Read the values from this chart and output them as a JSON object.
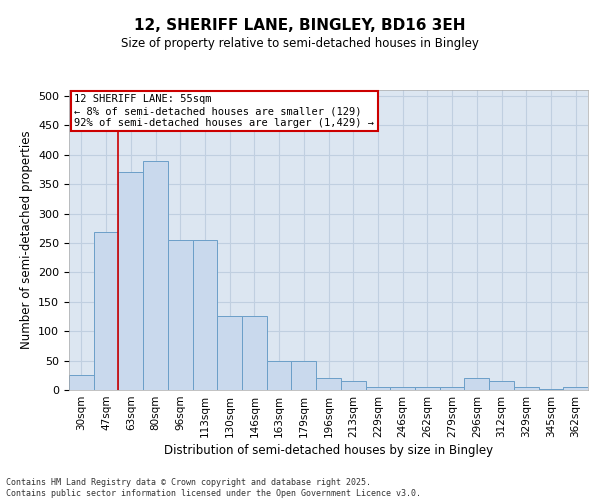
{
  "title1": "12, SHERIFF LANE, BINGLEY, BD16 3EH",
  "title2": "Size of property relative to semi-detached houses in Bingley",
  "xlabel": "Distribution of semi-detached houses by size in Bingley",
  "ylabel": "Number of semi-detached properties",
  "categories": [
    "30sqm",
    "47sqm",
    "63sqm",
    "80sqm",
    "96sqm",
    "113sqm",
    "130sqm",
    "146sqm",
    "163sqm",
    "179sqm",
    "196sqm",
    "213sqm",
    "229sqm",
    "246sqm",
    "262sqm",
    "279sqm",
    "296sqm",
    "312sqm",
    "329sqm",
    "345sqm",
    "362sqm"
  ],
  "values": [
    25,
    268,
    370,
    390,
    255,
    255,
    125,
    125,
    50,
    50,
    20,
    15,
    5,
    5,
    5,
    5,
    20,
    15,
    5,
    2,
    5
  ],
  "bar_color": "#c9d9ed",
  "bar_edge_color": "#6b9fc8",
  "plot_bg_color": "#dce6f1",
  "fig_bg_color": "#ffffff",
  "grid_color": "#c0cfe0",
  "property_line_x": 1.5,
  "vline_color": "#cc0000",
  "annotation_title": "12 SHERIFF LANE: 55sqm",
  "annotation_line1": "← 8% of semi-detached houses are smaller (129)",
  "annotation_line2": "92% of semi-detached houses are larger (1,429) →",
  "annotation_box_facecolor": "#ffffff",
  "annotation_box_edgecolor": "#cc0000",
  "ylim": [
    0,
    510
  ],
  "yticks": [
    0,
    50,
    100,
    150,
    200,
    250,
    300,
    350,
    400,
    450,
    500
  ],
  "footer1": "Contains HM Land Registry data © Crown copyright and database right 2025.",
  "footer2": "Contains public sector information licensed under the Open Government Licence v3.0."
}
